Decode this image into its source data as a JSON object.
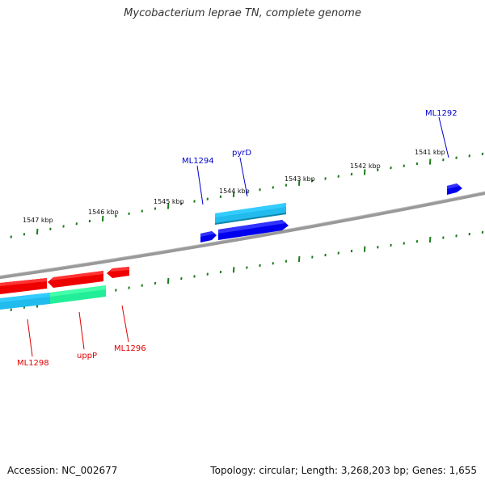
{
  "title": "Mycobacterium leprae TN, complete genome",
  "footer": {
    "accession": "Accession: NC_002677",
    "summary": "Topology: circular; Length: 3,268,203 bp; Genes: 1,655"
  },
  "ticks": [
    "1547 kbp",
    "1546 kbp",
    "1545 kbp",
    "1544 kbp",
    "1543 kbp",
    "1542 kbp",
    "1541 kbp"
  ],
  "genes": [
    {
      "name": "ML1292",
      "strand": "forward",
      "color": "#0000cc"
    },
    {
      "name": "ML1294",
      "strand": "forward",
      "color": "#0000cc"
    },
    {
      "name": "pyrD",
      "strand": "forward",
      "color": "#0000cc"
    },
    {
      "name": "ML1296",
      "strand": "reverse",
      "color": "#e00000"
    },
    {
      "name": "uppP",
      "strand": "reverse",
      "color": "#e00000"
    },
    {
      "name": "ML1298",
      "strand": "reverse",
      "color": "#e00000"
    }
  ],
  "colors": {
    "backbone": "#808080",
    "tick_marks": "#1a7a1a",
    "forward_gene": "#0000ee",
    "reverse_gene": "#ee0000",
    "forward_feature": "#22bbee",
    "reverse_feature_a": "#22bbee",
    "reverse_feature_b": "#22ee99"
  }
}
